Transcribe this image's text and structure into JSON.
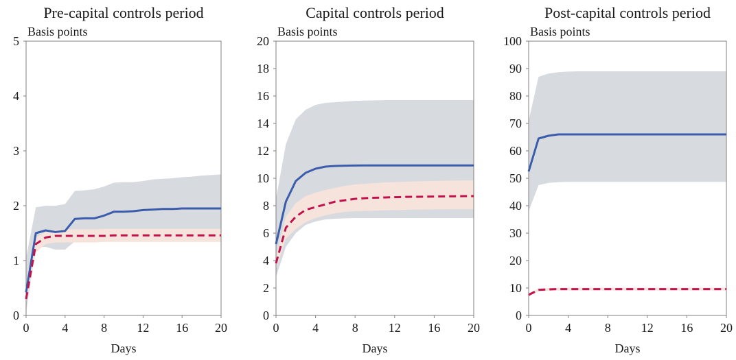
{
  "colors": {
    "blue_line": "#3b5bab",
    "red_dashed": "#c0134e",
    "grey_band": "#d7dbe0",
    "pink_band": "#f6e3dc",
    "axis": "#7f7f7f"
  },
  "chart_data": [
    {
      "type": "line",
      "title": "Pre-capital controls period",
      "ylabel": "Basis points",
      "xlabel": "Days",
      "xlim": [
        0,
        20
      ],
      "ylim": [
        0,
        5
      ],
      "xticks": [
        0,
        4,
        8,
        12,
        16,
        20
      ],
      "yticks": [
        0,
        1,
        2,
        3,
        4,
        5
      ],
      "x": [
        0,
        1,
        2,
        3,
        4,
        5,
        6,
        7,
        8,
        9,
        10,
        11,
        12,
        13,
        14,
        15,
        16,
        17,
        18,
        19,
        20
      ],
      "series": [
        {
          "style": "solid",
          "color": "blue",
          "values": [
            0.42,
            1.5,
            1.55,
            1.52,
            1.54,
            1.76,
            1.77,
            1.77,
            1.82,
            1.89,
            1.89,
            1.9,
            1.92,
            1.93,
            1.94,
            1.94,
            1.95,
            1.95,
            1.95,
            1.95,
            1.95
          ]
        },
        {
          "style": "dashed",
          "color": "red",
          "values": [
            0.3,
            1.3,
            1.42,
            1.45,
            1.45,
            1.45,
            1.45,
            1.45,
            1.45,
            1.46,
            1.46,
            1.46,
            1.46,
            1.46,
            1.46,
            1.46,
            1.46,
            1.46,
            1.46,
            1.46,
            1.46
          ]
        }
      ],
      "bands": [
        {
          "color": "grey",
          "lower": [
            0.05,
            1.25,
            1.25,
            1.2,
            1.2,
            1.35,
            1.35,
            1.35,
            1.35,
            1.35,
            1.35,
            1.35,
            1.35,
            1.35,
            1.35,
            1.35,
            1.35,
            1.35,
            1.35,
            1.35,
            1.35
          ],
          "upper": [
            1.05,
            1.97,
            2.0,
            2.0,
            2.03,
            2.27,
            2.28,
            2.3,
            2.35,
            2.42,
            2.43,
            2.43,
            2.45,
            2.48,
            2.49,
            2.5,
            2.52,
            2.53,
            2.55,
            2.56,
            2.57
          ]
        },
        {
          "color": "pink",
          "lower": [
            0.2,
            1.15,
            1.3,
            1.33,
            1.33,
            1.33,
            1.33,
            1.33,
            1.34,
            1.34,
            1.34,
            1.34,
            1.34,
            1.34,
            1.34,
            1.34,
            1.34,
            1.34,
            1.34,
            1.34,
            1.34
          ],
          "upper": [
            0.42,
            1.42,
            1.52,
            1.56,
            1.57,
            1.57,
            1.57,
            1.57,
            1.58,
            1.58,
            1.58,
            1.58,
            1.58,
            1.58,
            1.58,
            1.58,
            1.58,
            1.58,
            1.58,
            1.58,
            1.58
          ]
        }
      ]
    },
    {
      "type": "line",
      "title": "Capital controls period",
      "ylabel": "Basis points",
      "xlabel": "Days",
      "xlim": [
        0,
        20
      ],
      "ylim": [
        0,
        20
      ],
      "xticks": [
        0,
        4,
        8,
        12,
        16,
        20
      ],
      "yticks": [
        0,
        2,
        4,
        6,
        8,
        10,
        12,
        14,
        16,
        18,
        20
      ],
      "x": [
        0,
        1,
        2,
        3,
        4,
        5,
        6,
        7,
        8,
        9,
        10,
        11,
        12,
        13,
        14,
        15,
        16,
        17,
        18,
        19,
        20
      ],
      "series": [
        {
          "style": "solid",
          "color": "blue",
          "values": [
            5.2,
            8.3,
            9.8,
            10.4,
            10.7,
            10.85,
            10.9,
            10.92,
            10.93,
            10.94,
            10.94,
            10.94,
            10.94,
            10.94,
            10.94,
            10.94,
            10.94,
            10.94,
            10.94,
            10.94,
            10.94
          ]
        },
        {
          "style": "dashed",
          "color": "red",
          "values": [
            3.8,
            6.4,
            7.2,
            7.7,
            7.9,
            8.1,
            8.3,
            8.4,
            8.5,
            8.55,
            8.58,
            8.6,
            8.62,
            8.64,
            8.65,
            8.66,
            8.67,
            8.68,
            8.69,
            8.7,
            8.7
          ]
        }
      ],
      "bands": [
        {
          "color": "grey",
          "lower": [
            2.8,
            5.0,
            6.0,
            6.6,
            6.85,
            7.0,
            7.05,
            7.08,
            7.1,
            7.1,
            7.1,
            7.1,
            7.1,
            7.1,
            7.1,
            7.1,
            7.1,
            7.1,
            7.1,
            7.1,
            7.1
          ],
          "upper": [
            8.5,
            12.5,
            14.3,
            15.0,
            15.35,
            15.5,
            15.55,
            15.6,
            15.65,
            15.67,
            15.68,
            15.7,
            15.7,
            15.7,
            15.7,
            15.7,
            15.7,
            15.7,
            15.7,
            15.7,
            15.7
          ]
        },
        {
          "color": "pink",
          "lower": [
            3.4,
            5.6,
            6.3,
            6.8,
            7.1,
            7.3,
            7.45,
            7.55,
            7.6,
            7.62,
            7.64,
            7.66,
            7.68,
            7.7,
            7.71,
            7.72,
            7.73,
            7.74,
            7.75,
            7.75,
            7.75
          ],
          "upper": [
            4.3,
            7.2,
            8.2,
            8.7,
            8.95,
            9.15,
            9.3,
            9.45,
            9.55,
            9.6,
            9.65,
            9.7,
            9.72,
            9.75,
            9.77,
            9.79,
            9.8,
            9.82,
            9.83,
            9.84,
            9.85
          ]
        }
      ]
    },
    {
      "type": "line",
      "title": "Post-capital controls period",
      "ylabel": "Basis points",
      "xlabel": "Days",
      "xlim": [
        0,
        20
      ],
      "ylim": [
        0,
        100
      ],
      "xticks": [
        0,
        4,
        8,
        12,
        16,
        20
      ],
      "yticks": [
        0,
        10,
        20,
        30,
        40,
        50,
        60,
        70,
        80,
        90,
        100
      ],
      "x": [
        0,
        1,
        2,
        3,
        4,
        5,
        6,
        7,
        8,
        9,
        10,
        11,
        12,
        13,
        14,
        15,
        16,
        17,
        18,
        19,
        20
      ],
      "series": [
        {
          "style": "solid",
          "color": "blue",
          "values": [
            52.5,
            64.5,
            65.5,
            66.0,
            66.0,
            66.0,
            66.0,
            66.0,
            66.0,
            66.0,
            66.0,
            66.0,
            66.0,
            66.0,
            66.0,
            66.0,
            66.0,
            66.0,
            66.0,
            66.0,
            66.0
          ]
        },
        {
          "style": "dashed",
          "color": "red",
          "values": [
            7.5,
            9.3,
            9.5,
            9.6,
            9.6,
            9.6,
            9.6,
            9.6,
            9.6,
            9.6,
            9.6,
            9.6,
            9.6,
            9.6,
            9.6,
            9.6,
            9.6,
            9.6,
            9.6,
            9.6,
            9.6
          ]
        }
      ],
      "bands": [
        {
          "color": "grey",
          "lower": [
            38.0,
            47.5,
            48.3,
            48.6,
            48.7,
            48.7,
            48.7,
            48.7,
            48.7,
            48.7,
            48.7,
            48.7,
            48.7,
            48.7,
            48.7,
            48.7,
            48.7,
            48.7,
            48.7,
            48.7,
            48.7
          ],
          "upper": [
            71.0,
            87.0,
            88.2,
            88.7,
            88.9,
            89.0,
            89.0,
            89.0,
            89.0,
            89.0,
            89.0,
            89.0,
            89.0,
            89.0,
            89.0,
            89.0,
            89.0,
            89.0,
            89.0,
            89.0,
            89.0
          ]
        },
        {
          "color": "pink",
          "lower": [
            7.0,
            8.8,
            9.0,
            9.1,
            9.1,
            9.1,
            9.1,
            9.1,
            9.1,
            9.1,
            9.1,
            9.1,
            9.1,
            9.1,
            9.1,
            9.1,
            9.1,
            9.1,
            9.1,
            9.1,
            9.1
          ],
          "upper": [
            8.0,
            9.8,
            10.0,
            10.1,
            10.1,
            10.1,
            10.1,
            10.1,
            10.1,
            10.1,
            10.1,
            10.1,
            10.1,
            10.1,
            10.1,
            10.1,
            10.1,
            10.1,
            10.1,
            10.1,
            10.1
          ]
        }
      ]
    }
  ]
}
